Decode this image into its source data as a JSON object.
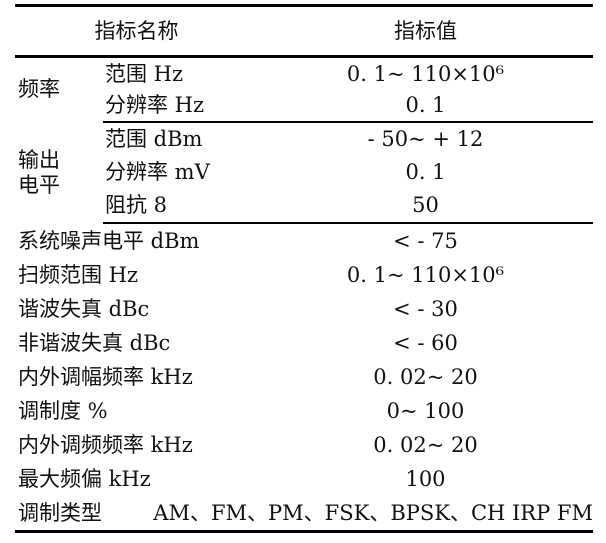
{
  "colors": {
    "background": "#ffffff",
    "text": "#111111",
    "rule": "#000000"
  },
  "table": {
    "headers": {
      "name": "指标名称",
      "value": "指标值"
    },
    "groups": [
      {
        "label": "频率",
        "rows": [
          {
            "name": "范围 Hz",
            "value": "0. 1~ 110×10⁶"
          },
          {
            "name": "分辨率 Hz",
            "value": "0. 1"
          }
        ]
      },
      {
        "label": "输出电平",
        "rows": [
          {
            "name": "范围 dBm",
            "value": "- 50~ + 12"
          },
          {
            "name": "分辨率 mV",
            "value": "0. 1"
          },
          {
            "name": "阻抗 8",
            "value": "50"
          }
        ]
      }
    ],
    "rows": [
      {
        "name": "系统噪声电平 dBm",
        "value": "< - 75"
      },
      {
        "name": "扫频范围 Hz",
        "value": "0. 1~ 110×10⁶"
      },
      {
        "name": "谐波失真 dBc",
        "value": "< - 30"
      },
      {
        "name": "非谐波失真 dBc",
        "value": "< - 60"
      },
      {
        "name": "内外调幅频率 kHz",
        "value": "0. 02~ 20"
      },
      {
        "name": "调制度 %",
        "value": "0~ 100"
      },
      {
        "name": "内外调频频率 kHz",
        "value": "0. 02~ 20"
      },
      {
        "name": "最大频偏 kHz",
        "value": "100"
      },
      {
        "name": "调制类型",
        "value": "AM、FM、PM、FSK、BPSK、CH IRP FM"
      }
    ]
  }
}
